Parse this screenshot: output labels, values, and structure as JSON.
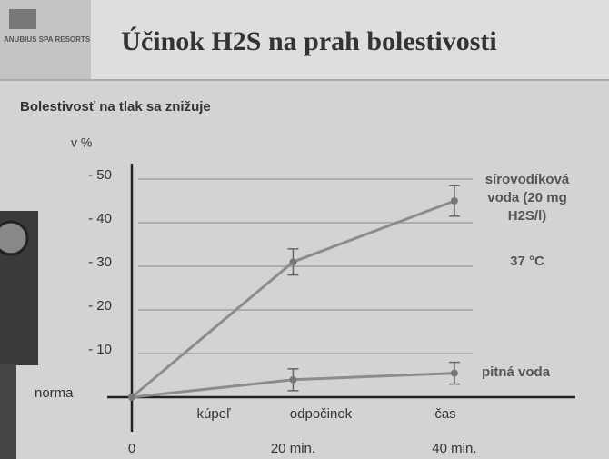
{
  "header": {
    "logo": "ANUBIUS SPA RESORTS",
    "title": "Účinok H2S na prah bolestivosti"
  },
  "chart_data": {
    "type": "line",
    "title": "Bolestivosť na tlak sa znižuje",
    "y_label": "v %",
    "x": [
      0,
      20,
      40
    ],
    "xlim": [
      0,
      55
    ],
    "xticks": [
      0,
      {
        "value": 20,
        "label": "20 min."
      },
      {
        "value": 40,
        "label": "40 min."
      }
    ],
    "phase_labels": [
      "kúpeľ",
      "odpočinok",
      "čas"
    ],
    "ylim": [
      0,
      -55
    ],
    "yticks": [
      {
        "value": 0,
        "label": "norma"
      },
      {
        "value": -10,
        "label": "- 10"
      },
      {
        "value": -20,
        "label": "- 20"
      },
      {
        "value": -30,
        "label": "- 30"
      },
      {
        "value": -40,
        "label": "- 40"
      },
      {
        "value": -50,
        "label": "- 50"
      }
    ],
    "grid": true,
    "annotation": "37 °C",
    "series": [
      {
        "name": "sírovodíková voda (20 mg H2S/l)",
        "color": "#8c8c8c",
        "values": [
          0,
          -31,
          -45
        ],
        "errors": [
          null,
          3,
          3.5
        ]
      },
      {
        "name": "pitná voda",
        "color": "#8c8c8c",
        "values": [
          0,
          -4,
          -5.5
        ],
        "errors": [
          null,
          2.5,
          2.5
        ]
      }
    ]
  }
}
